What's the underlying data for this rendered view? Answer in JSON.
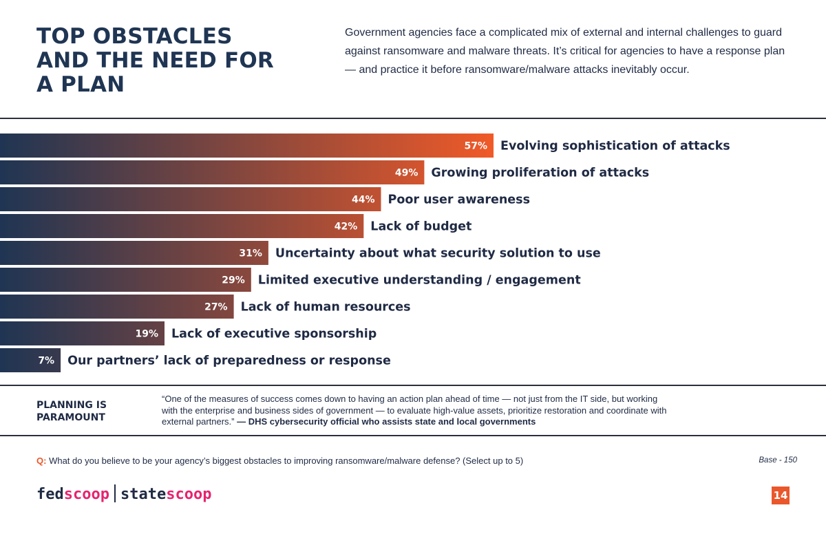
{
  "header": {
    "title_lines": [
      "TOP OBSTACLES",
      "AND THE NEED FOR",
      "A PLAN"
    ],
    "intro": "Government agencies face a complicated mix of external and internal challenges to guard against ransomware and malware threats. It’s critical for agencies to have a response plan — and practice it before ransomware/malware attacks inevitably occur."
  },
  "chart_data": {
    "type": "bar",
    "orientation": "horizontal",
    "unit": "%",
    "categories": [
      "Evolving sophistication of attacks",
      "Growing proliferation of attacks",
      "Poor user awareness",
      "Lack of budget",
      "Uncertainty about what security solution to use",
      "Limited executive understanding / engagement",
      "Lack of human resources",
      "Lack of executive sponsorship",
      "Our partners’ lack of preparedness or response"
    ],
    "values": [
      57,
      49,
      44,
      42,
      31,
      29,
      27,
      19,
      7
    ],
    "value_labels": [
      "57%",
      "49%",
      "44%",
      "42%",
      "31%",
      "29%",
      "27%",
      "19%",
      "7%"
    ],
    "colors": {
      "gradient_start": "#1f3553",
      "gradient_end": "#f05a28"
    },
    "grid": false,
    "legend": "none"
  },
  "planning": {
    "heading_lines": [
      "PLANNING IS",
      "PARAMOUNT"
    ],
    "quote": "“One of the measures of success comes down to having an action plan ahead of time — not just from the IT side, but working with the enterprise and business sides of government — to evaluate high-value assets, prioritize restoration and coordinate with external partners.”",
    "attribution": "— DHS cybersecurity official who assists state and local governments"
  },
  "footer": {
    "question_label": "Q:",
    "question": "What do you believe to be your agency’s biggest obstacles to improving ransomware/malware defense? (Select up to 5)",
    "base": "Base - 150",
    "logo": {
      "fed": "fed",
      "scoop1": "scoop",
      "state": "state",
      "scoop2": "scoop"
    },
    "page_number": "14"
  },
  "colors": {
    "accent": "#e9572b",
    "brand_pink": "#e5246f",
    "navy": "#1f3553"
  }
}
